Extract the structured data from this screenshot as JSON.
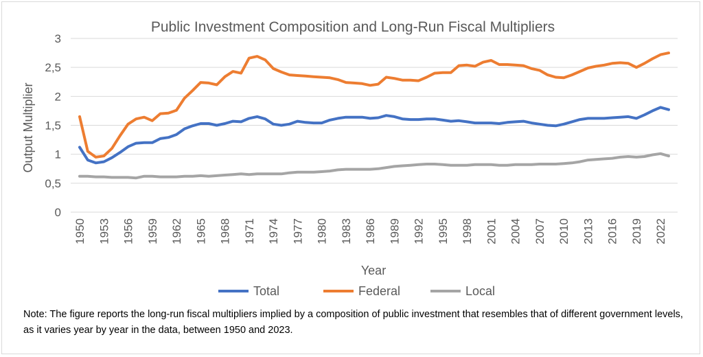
{
  "chart_data": {
    "type": "line",
    "title": "Public Investment Composition and Long-Run Fiscal Multipliers",
    "xlabel": "Year",
    "ylabel": "Output Multiplier",
    "ylim": [
      0,
      3
    ],
    "yticks": [
      "0",
      "0,5",
      "1",
      "1,5",
      "2",
      "2,5",
      "3"
    ],
    "x": [
      1950,
      1951,
      1952,
      1953,
      1954,
      1955,
      1956,
      1957,
      1958,
      1959,
      1960,
      1961,
      1962,
      1963,
      1964,
      1965,
      1966,
      1967,
      1968,
      1969,
      1970,
      1971,
      1972,
      1973,
      1974,
      1975,
      1976,
      1977,
      1978,
      1979,
      1980,
      1981,
      1982,
      1983,
      1984,
      1985,
      1986,
      1987,
      1988,
      1989,
      1990,
      1991,
      1992,
      1993,
      1994,
      1995,
      1996,
      1997,
      1998,
      1999,
      2000,
      2001,
      2002,
      2003,
      2004,
      2005,
      2006,
      2007,
      2008,
      2009,
      2010,
      2011,
      2012,
      2013,
      2014,
      2015,
      2016,
      2017,
      2018,
      2019,
      2020,
      2021,
      2022,
      2023
    ],
    "xtick_labels": [
      "1950",
      "1953",
      "1956",
      "1959",
      "1962",
      "1965",
      "1968",
      "1971",
      "1974",
      "1977",
      "1980",
      "1983",
      "1986",
      "1989",
      "1992",
      "1995",
      "1998",
      "2001",
      "2004",
      "2007",
      "2010",
      "2013",
      "2016",
      "2019",
      "2022"
    ],
    "grid": true,
    "legend_position": "bottom",
    "series": [
      {
        "name": "Total",
        "color": "#4472C4",
        "values": [
          1.12,
          0.9,
          0.85,
          0.87,
          0.94,
          1.03,
          1.13,
          1.19,
          1.2,
          1.2,
          1.27,
          1.29,
          1.34,
          1.44,
          1.49,
          1.53,
          1.53,
          1.5,
          1.53,
          1.57,
          1.56,
          1.62,
          1.65,
          1.61,
          1.52,
          1.5,
          1.52,
          1.57,
          1.55,
          1.54,
          1.54,
          1.59,
          1.62,
          1.64,
          1.64,
          1.64,
          1.62,
          1.63,
          1.67,
          1.65,
          1.61,
          1.6,
          1.6,
          1.61,
          1.61,
          1.59,
          1.57,
          1.58,
          1.56,
          1.54,
          1.54,
          1.54,
          1.53,
          1.55,
          1.56,
          1.57,
          1.54,
          1.52,
          1.5,
          1.49,
          1.52,
          1.56,
          1.6,
          1.62,
          1.62,
          1.62,
          1.63,
          1.64,
          1.65,
          1.62,
          1.68,
          1.75,
          1.81,
          1.77
        ]
      },
      {
        "name": "Federal",
        "color": "#ED7D31",
        "values": [
          1.65,
          1.05,
          0.95,
          0.97,
          1.1,
          1.32,
          1.52,
          1.61,
          1.64,
          1.58,
          1.7,
          1.71,
          1.76,
          1.97,
          2.1,
          2.24,
          2.23,
          2.2,
          2.34,
          2.43,
          2.4,
          2.66,
          2.69,
          2.63,
          2.48,
          2.42,
          2.37,
          2.36,
          2.35,
          2.34,
          2.33,
          2.32,
          2.29,
          2.24,
          2.23,
          2.22,
          2.19,
          2.21,
          2.33,
          2.31,
          2.28,
          2.28,
          2.27,
          2.33,
          2.4,
          2.41,
          2.41,
          2.53,
          2.54,
          2.52,
          2.59,
          2.62,
          2.55,
          2.55,
          2.54,
          2.53,
          2.48,
          2.45,
          2.37,
          2.33,
          2.32,
          2.37,
          2.43,
          2.49,
          2.52,
          2.54,
          2.57,
          2.58,
          2.57,
          2.5,
          2.57,
          2.65,
          2.72,
          2.75
        ]
      },
      {
        "name": "Local",
        "color": "#A5A5A5",
        "values": [
          0.62,
          0.62,
          0.61,
          0.61,
          0.6,
          0.6,
          0.6,
          0.59,
          0.62,
          0.62,
          0.61,
          0.61,
          0.61,
          0.62,
          0.62,
          0.63,
          0.62,
          0.63,
          0.64,
          0.65,
          0.66,
          0.65,
          0.66,
          0.66,
          0.66,
          0.66,
          0.68,
          0.69,
          0.69,
          0.69,
          0.7,
          0.71,
          0.73,
          0.74,
          0.74,
          0.74,
          0.74,
          0.75,
          0.77,
          0.79,
          0.8,
          0.81,
          0.82,
          0.83,
          0.83,
          0.82,
          0.81,
          0.81,
          0.81,
          0.82,
          0.82,
          0.82,
          0.81,
          0.81,
          0.82,
          0.82,
          0.82,
          0.83,
          0.83,
          0.83,
          0.84,
          0.85,
          0.87,
          0.9,
          0.91,
          0.92,
          0.93,
          0.95,
          0.96,
          0.95,
          0.96,
          0.99,
          1.01,
          0.97
        ]
      }
    ]
  },
  "note": "Note: The figure reports the long-run fiscal multipliers implied by a composition of public investment  that resembles that of different government levels, as it varies year by year in the data, between 1950 and 2023."
}
